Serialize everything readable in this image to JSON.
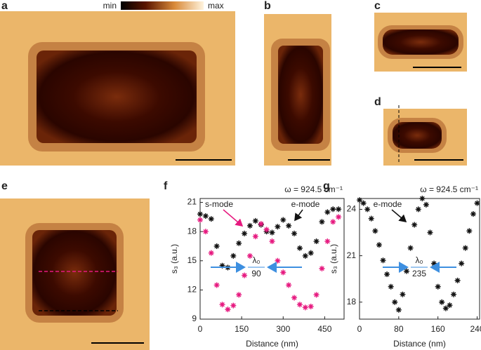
{
  "figure": {
    "panels": [
      "a",
      "b",
      "c",
      "d",
      "e"
    ],
    "colorbar": {
      "min": "min",
      "max": "max"
    }
  },
  "chart_data": [
    {
      "type": "scatter",
      "panel": "f",
      "title": "ω = 924.5 cm⁻¹",
      "xlabel": "Distance (nm)",
      "ylabel": "s₃ (a.u.)",
      "x": [
        0,
        20,
        40,
        60,
        80,
        100,
        120,
        140,
        160,
        180,
        200,
        220,
        240,
        260,
        280,
        300,
        320,
        340,
        360,
        380,
        400,
        420,
        440,
        460,
        480,
        500
      ],
      "series": [
        {
          "name": "e-mode",
          "color": "#111111",
          "values": [
            19.8,
            19.6,
            19.3,
            16.5,
            14.5,
            14.3,
            15.5,
            16.8,
            17.8,
            18.6,
            19.1,
            18.7,
            18.0,
            17.9,
            18.5,
            19.2,
            18.6,
            17.8,
            16.3,
            15.5,
            15.8,
            17.0,
            19.0,
            20.0,
            20.3,
            20.3
          ]
        },
        {
          "name": "s-mode",
          "color": "#e6197f",
          "values": [
            19.2,
            18.0,
            15.8,
            12.5,
            10.5,
            10.0,
            10.4,
            11.5,
            13.5,
            15.5,
            17.5,
            18.8,
            18.2,
            17.0,
            15.0,
            13.8,
            12.5,
            11.2,
            10.5,
            10.2,
            10.3,
            11.5,
            14.2,
            17.0,
            19.0,
            19.5
          ]
        }
      ],
      "xlim": [
        0,
        520
      ],
      "ylim": [
        9,
        21.4
      ],
      "xticks": [
        0,
        150,
        300,
        450
      ],
      "yticks": [
        9,
        12,
        15,
        18,
        21
      ],
      "annotations": [
        {
          "numerator": "λ₀",
          "denominator": "90"
        }
      ]
    },
    {
      "type": "scatter",
      "panel": "g",
      "title": "ω = 924.5 cm⁻¹",
      "xlabel": "Distance (nm)",
      "ylabel": "s₃ (a.u.)",
      "x": [
        0,
        8,
        16,
        24,
        32,
        40,
        48,
        56,
        64,
        72,
        80,
        88,
        96,
        104,
        112,
        120,
        128,
        136,
        144,
        152,
        160,
        168,
        176,
        184,
        192,
        200,
        208,
        216,
        224,
        232,
        240
      ],
      "series": [
        {
          "name": "e-mode",
          "color": "#111111",
          "values": [
            24.6,
            24.4,
            24.0,
            23.4,
            22.6,
            21.7,
            20.7,
            19.8,
            19.0,
            18.0,
            17.5,
            18.5,
            20.0,
            21.5,
            23.0,
            24.0,
            24.7,
            24.3,
            22.5,
            20.5,
            19.0,
            18.0,
            17.6,
            17.8,
            18.5,
            19.4,
            20.5,
            21.5,
            22.6,
            23.7,
            24.4
          ]
        }
      ],
      "xlim": [
        0,
        245
      ],
      "ylim": [
        16.9,
        24.7
      ],
      "xticks": [
        0,
        80,
        160,
        240
      ],
      "yticks": [
        18,
        21,
        24
      ],
      "annotations": [
        {
          "numerator": "λ₀",
          "denominator": "235"
        }
      ]
    }
  ]
}
